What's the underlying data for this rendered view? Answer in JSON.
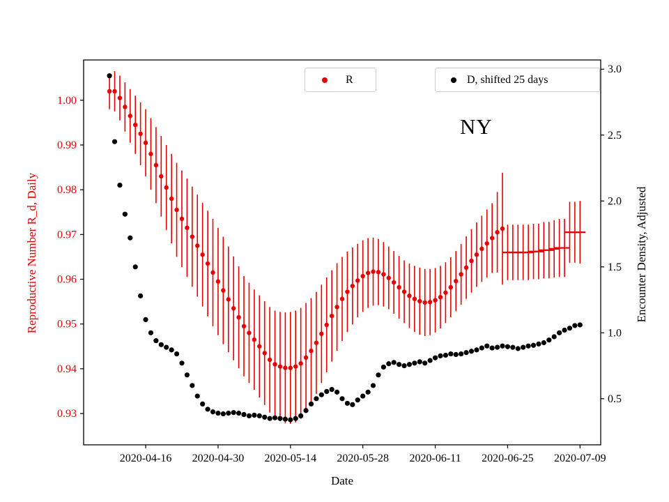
{
  "figure": {
    "annotation": "NY",
    "xlabel": "Date",
    "ylabel_left": "Reproductive Number R_d, Daily",
    "ylabel_right": "Encounter Density, Adjusted",
    "colors": {
      "r_series": "#e60000",
      "d_series": "#000000",
      "axis": "#000000",
      "left_tick_label": "#e60000",
      "legend_border": "#cccccc"
    }
  },
  "legend": {
    "r_label": "R",
    "d_label": "D, shifted 25 days"
  },
  "chart_data": {
    "type": "scatter",
    "title": "NY",
    "xlabel": "Date",
    "ylabel_left": "Reproductive Number R_d, Daily",
    "ylabel_right": "Encounter Density, Adjusted",
    "legend_position": "top-inside",
    "grid": false,
    "x_domain": [
      "2020-04-04",
      "2020-07-13"
    ],
    "x_start_date": "2020-04-09",
    "x_ticks": [
      "2020-04-16",
      "2020-04-30",
      "2020-05-14",
      "2020-05-28",
      "2020-06-11",
      "2020-06-25",
      "2020-07-09"
    ],
    "ylim_left": [
      0.923,
      1.009
    ],
    "yticks_left": [
      0.93,
      0.94,
      0.95,
      0.96,
      0.97,
      0.98,
      0.99,
      1.0
    ],
    "ylim_right": [
      0.15,
      3.07
    ],
    "yticks_right": [
      0.5,
      1.0,
      1.5,
      2.0,
      2.5,
      3.0
    ],
    "series": [
      {
        "name": "R",
        "axis": "left",
        "color": "#e60000",
        "marker": "circle",
        "hline_marker_from_index": 77,
        "values": [
          1.002,
          1.002,
          1.0005,
          0.9985,
          0.9965,
          0.9945,
          0.9925,
          0.9905,
          0.988,
          0.9855,
          0.983,
          0.9805,
          0.978,
          0.9755,
          0.9735,
          0.9715,
          0.9695,
          0.9675,
          0.9655,
          0.9635,
          0.9615,
          0.9595,
          0.9575,
          0.9555,
          0.9535,
          0.9515,
          0.9495,
          0.948,
          0.9465,
          0.945,
          0.9435,
          0.942,
          0.941,
          0.9405,
          0.9402,
          0.9402,
          0.9405,
          0.9412,
          0.9425,
          0.944,
          0.9458,
          0.9478,
          0.9498,
          0.9518,
          0.9538,
          0.9556,
          0.9572,
          0.9585,
          0.9597,
          0.9607,
          0.9614,
          0.9617,
          0.9616,
          0.9611,
          0.9603,
          0.9593,
          0.9582,
          0.9572,
          0.9563,
          0.9556,
          0.9551,
          0.9548,
          0.9549,
          0.9553,
          0.956,
          0.957,
          0.9582,
          0.9596,
          0.9611,
          0.9626,
          0.9641,
          0.9655,
          0.9668,
          0.968,
          0.9692,
          0.9705,
          0.9713,
          0.966,
          0.966,
          0.966,
          0.966,
          0.966,
          0.9662,
          0.9662,
          0.9665,
          0.9665,
          0.9668,
          0.967,
          0.967,
          0.9705,
          0.9705,
          0.9705
        ],
        "err": [
          0.004,
          0.0045,
          0.005,
          0.0055,
          0.006,
          0.0065,
          0.007,
          0.0075,
          0.008,
          0.0085,
          0.009,
          0.0095,
          0.01,
          0.0105,
          0.0108,
          0.011,
          0.0112,
          0.0114,
          0.0116,
          0.0118,
          0.012,
          0.012,
          0.012,
          0.0118,
          0.0116,
          0.0114,
          0.0112,
          0.0112,
          0.0112,
          0.0114,
          0.0116,
          0.0118,
          0.012,
          0.0122,
          0.0124,
          0.0125,
          0.0125,
          0.0124,
          0.0122,
          0.0118,
          0.0114,
          0.011,
          0.0106,
          0.0102,
          0.0098,
          0.0094,
          0.009,
          0.0086,
          0.0082,
          0.008,
          0.0078,
          0.0076,
          0.0074,
          0.0072,
          0.007,
          0.007,
          0.007,
          0.007,
          0.0072,
          0.0074,
          0.0075,
          0.0075,
          0.0074,
          0.0072,
          0.007,
          0.0068,
          0.0067,
          0.0067,
          0.0068,
          0.007,
          0.0071,
          0.0072,
          0.0074,
          0.0076,
          0.0078,
          0.009,
          0.0125,
          0.0062,
          0.0062,
          0.0062,
          0.0062,
          0.0062,
          0.0062,
          0.0062,
          0.0063,
          0.0063,
          0.0064,
          0.0065,
          0.0065,
          0.0068,
          0.0068,
          0.007
        ]
      },
      {
        "name": "D, shifted 25 days",
        "axis": "right",
        "color": "#000000",
        "marker": "circle",
        "values": [
          2.95,
          2.45,
          2.12,
          1.9,
          1.72,
          1.5,
          1.28,
          1.1,
          1.0,
          0.94,
          0.91,
          0.89,
          0.87,
          0.84,
          0.77,
          0.68,
          0.6,
          0.52,
          0.46,
          0.42,
          0.4,
          0.39,
          0.385,
          0.39,
          0.395,
          0.39,
          0.38,
          0.37,
          0.375,
          0.37,
          0.36,
          0.35,
          0.355,
          0.35,
          0.345,
          0.34,
          0.35,
          0.37,
          0.41,
          0.46,
          0.5,
          0.53,
          0.555,
          0.57,
          0.55,
          0.5,
          0.465,
          0.455,
          0.49,
          0.52,
          0.55,
          0.6,
          0.68,
          0.74,
          0.765,
          0.775,
          0.76,
          0.75,
          0.76,
          0.77,
          0.78,
          0.77,
          0.79,
          0.81,
          0.825,
          0.83,
          0.84,
          0.835,
          0.84,
          0.85,
          0.86,
          0.87,
          0.885,
          0.9,
          0.885,
          0.89,
          0.9,
          0.895,
          0.89,
          0.88,
          0.89,
          0.9,
          0.905,
          0.915,
          0.925,
          0.945,
          0.97,
          1.0,
          1.02,
          1.035,
          1.055,
          1.06
        ]
      }
    ]
  }
}
